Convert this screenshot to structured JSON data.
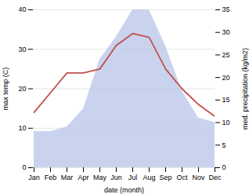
{
  "chart_data": {
    "type": "line",
    "categories": [
      "Jan",
      "Feb",
      "Mar",
      "Apr",
      "May",
      "Jun",
      "Jul",
      "Aug",
      "Sep",
      "Oct",
      "Nov",
      "Dec"
    ],
    "series": [
      {
        "type": "area",
        "axis": "y2",
        "color": "#b8c4e8",
        "values": [
          8,
          8,
          9,
          13,
          24,
          29,
          35,
          35,
          27,
          17,
          11,
          10
        ]
      },
      {
        "type": "line",
        "color": "#c0504d",
        "values": [
          14,
          19,
          24,
          24,
          25,
          31,
          34,
          33,
          25,
          20,
          16,
          13
        ]
      }
    ],
    "xlabel": "date (month)",
    "ylabel": "max temp (C)",
    "y2label": "med. precipitation (kg/m2)",
    "ylim": [
      0,
      40
    ],
    "yticks": [
      0,
      10,
      20,
      30,
      40
    ],
    "y2lim": [
      0,
      35
    ],
    "y2ticks": [
      0,
      5,
      10,
      15,
      20,
      25,
      30,
      35
    ],
    "grid": true
  }
}
